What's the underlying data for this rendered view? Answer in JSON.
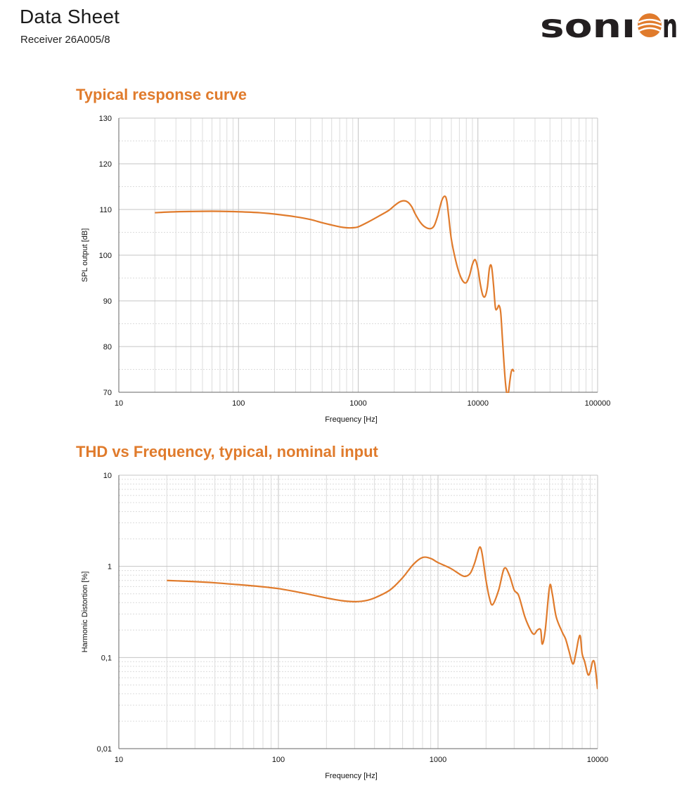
{
  "header": {
    "title": "Data Sheet",
    "subtitle": "Receiver 26A005/8",
    "logo_text": "sonion",
    "accent": "#e07b2c"
  },
  "chart_data": [
    {
      "type": "line",
      "title": "Typical response curve",
      "xlabel": "Frequency [Hz]",
      "ylabel": "SPL output [dB]",
      "xscale": "log",
      "xlim": [
        10,
        100000
      ],
      "ylim": [
        70,
        130
      ],
      "xticks": [
        "10",
        "100",
        "1000",
        "10000",
        "100000"
      ],
      "yticks": [
        "70",
        "80",
        "90",
        "100",
        "110",
        "120",
        "130"
      ],
      "grid": true,
      "line_color": "#e07b2c",
      "series": [
        {
          "x": [
            20,
            30,
            50,
            70,
            100,
            150,
            200,
            300,
            400,
            500,
            600,
            700,
            800,
            900,
            1000,
            1200,
            1500,
            1800,
            2000,
            2200,
            2400,
            2600,
            2800,
            3000,
            3300,
            3600,
            4000,
            4300,
            4600,
            5000,
            5300,
            5500,
            5700,
            6000,
            6500,
            7000,
            7500,
            8000,
            8500,
            9000,
            9500,
            10000,
            10500,
            11000,
            11500,
            12000,
            12500,
            13000,
            13500,
            14000,
            14500,
            15000,
            15500,
            16000,
            16500,
            17000,
            17500,
            18000,
            18500,
            19000,
            19500,
            20000
          ],
          "y": [
            109.3,
            109.5,
            109.6,
            109.6,
            109.5,
            109.3,
            109.0,
            108.4,
            107.8,
            107.1,
            106.6,
            106.2,
            106.0,
            106.0,
            106.2,
            107.2,
            108.6,
            109.8,
            110.8,
            111.6,
            111.9,
            111.6,
            110.6,
            109.0,
            107.2,
            106.2,
            105.8,
            106.4,
            108.5,
            112.0,
            112.9,
            111.8,
            108.5,
            103.5,
            99.0,
            96.0,
            94.3,
            94.0,
            95.5,
            98.0,
            99.0,
            97.0,
            93.5,
            91.2,
            91.0,
            93.0,
            97.2,
            97.5,
            93.5,
            88.5,
            88.3,
            89.0,
            87.5,
            82.0,
            76.5,
            72.0,
            69.5,
            70.0,
            72.5,
            74.5,
            75.0,
            74.5
          ]
        }
      ]
    },
    {
      "type": "line",
      "title": "THD vs Frequency, typical, nominal input",
      "xlabel": "Frequency [Hz]",
      "ylabel": "Harmonic Distortion [%]",
      "xscale": "log",
      "yscale": "log",
      "xlim": [
        10,
        10000
      ],
      "ylim": [
        0.01,
        10
      ],
      "xticks": [
        "10",
        "100",
        "1000",
        "10000"
      ],
      "yticks": [
        "0,01",
        "0,1",
        "1",
        "10"
      ],
      "grid": true,
      "line_color": "#e07b2c",
      "series": [
        {
          "x": [
            20,
            30,
            40,
            50,
            70,
            100,
            150,
            200,
            250,
            300,
            350,
            400,
            500,
            600,
            700,
            800,
            900,
            1000,
            1200,
            1400,
            1500,
            1600,
            1700,
            1800,
            1850,
            1900,
            2000,
            2100,
            2200,
            2400,
            2600,
            2800,
            3000,
            3200,
            3500,
            3800,
            4000,
            4200,
            4400,
            4500,
            4700,
            5000,
            5200,
            5500,
            6000,
            6300,
            6600,
            7000,
            7300,
            7600,
            7800,
            8000,
            8300,
            8700,
            9000,
            9300,
            9600,
            10000
          ],
          "y": [
            0.7,
            0.68,
            0.66,
            0.64,
            0.61,
            0.57,
            0.5,
            0.45,
            0.42,
            0.41,
            0.42,
            0.45,
            0.55,
            0.75,
            1.05,
            1.25,
            1.22,
            1.1,
            0.95,
            0.8,
            0.78,
            0.85,
            1.1,
            1.55,
            1.6,
            1.3,
            0.7,
            0.45,
            0.38,
            0.55,
            0.95,
            0.8,
            0.55,
            0.48,
            0.28,
            0.2,
            0.18,
            0.2,
            0.2,
            0.14,
            0.2,
            0.6,
            0.5,
            0.28,
            0.19,
            0.16,
            0.12,
            0.085,
            0.11,
            0.16,
            0.17,
            0.11,
            0.09,
            0.065,
            0.07,
            0.09,
            0.085,
            0.045
          ]
        }
      ]
    }
  ]
}
